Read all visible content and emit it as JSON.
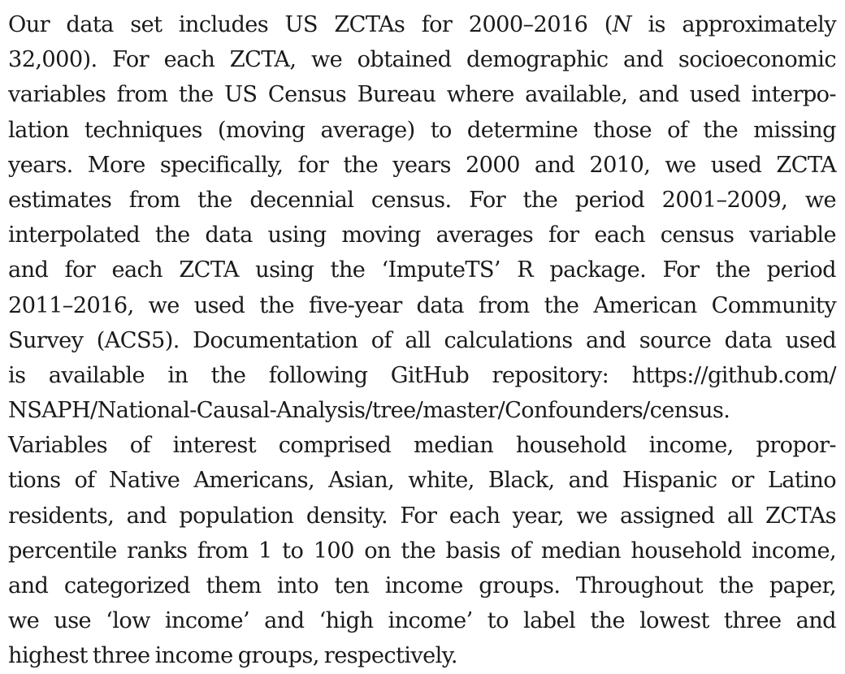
{
  "text": {
    "lines": [
      [
        "Our data set includes US ZCTAs for 2000–2016 (",
        "N",
        " is approximately"
      ],
      "32,000). For each ZCTA, we obtained demographic and socioeconomic",
      "variables from the US Census Bureau where available, and used interpo-",
      "lation techniques (moving average) to determine those of the missing",
      "years. More specifically, for the years 2000 and 2010, we used ZCTA",
      "estimates from the decennial census. For the period 2001–2009, we",
      "interpolated the data using moving averages for each census variable",
      "and for each ZCTA using the ‘ImputeTS’ R package. For the period",
      "2011–2016, we used the five-year data from the American Community",
      "Survey (ACS5). Documentation of all calculations and source data used",
      "is available in the following GitHub repository: https://github.com/",
      "NSAPH/National-Causal-Analysis/tree/master/Confounders/census.",
      "Variables of interest comprised median household income, propor-",
      "tions of Native Americans, Asian, white, Black, and Hispanic or Latino",
      "residents, and population density. For each year, we assigned all ZCTAs",
      "percentile ranks from 1 to 100 on the basis of median household income,",
      "and categorized them into ten income groups. Throughout the paper,",
      "we use ‘low income’ and ‘high income’ to label the lowest three and",
      "highest three income groups, respectively."
    ]
  }
}
